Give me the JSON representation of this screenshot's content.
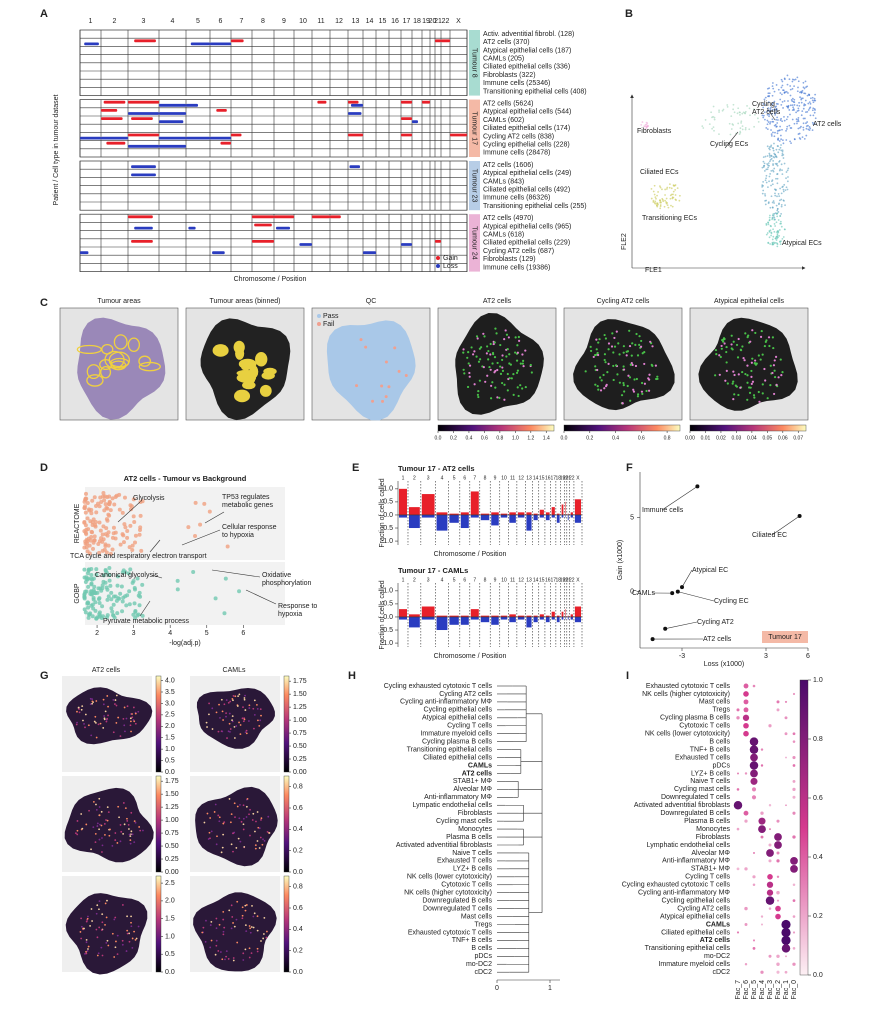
{
  "A": {
    "letter": "A",
    "chromosomes": [
      "1",
      "2",
      "3",
      "4",
      "5",
      "6",
      "7",
      "8",
      "9",
      "10",
      "11",
      "12",
      "13",
      "14",
      "15",
      "16",
      "17",
      "18",
      "19",
      "20",
      "21",
      "22",
      "X"
    ],
    "groups": [
      {
        "name": "Tumour 8",
        "color": "#a8dcd1",
        "rows": [
          "Activ. adventitial fibrobl. (128)",
          "AT2 cells (370)",
          "Atypical epithelial cells (187)",
          "CAMLs (205)",
          "Ciliated epithelial cells (336)",
          "Fibroblasts (322)",
          "Immune cells (25346)",
          "Transitioning epithelial cells (408)"
        ]
      },
      {
        "name": "Tumour 17",
        "color": "#f4b9a6",
        "rows": [
          "AT2 cells (5624)",
          "Atypical epithelial cells (544)",
          "CAMLs (602)",
          "Ciliated epithelial cells (174)",
          "Cycling AT2 cells (838)",
          "Cycling epithelial cells (228)",
          "Immune cells (28478)"
        ]
      },
      {
        "name": "Tumour 23",
        "color": "#b7cde6",
        "rows": [
          "AT2 cells (1606)",
          "Atypical epithelial cells (249)",
          "CAMLs (843)",
          "Ciliated epithelial cells (492)",
          "Immune cells (86326)",
          "Transitioning epithelial cells (255)"
        ]
      },
      {
        "name": "Tumour 24",
        "color": "#ebb3d6",
        "rows": [
          "AT2 cells (4970)",
          "Atypical epithelial cells (965)",
          "CAMLs (618)",
          "Ciliated epithelial cells (229)",
          "Cycling AT2 cells (687)",
          "Fibroblasts (129)",
          "Immune cells (19386)"
        ]
      }
    ],
    "y_label": "Patient / Cell type in tumour dataset",
    "x_label": "Chromosome / Position",
    "legend": [
      {
        "name": "Gain",
        "color": "#e8202a"
      },
      {
        "name": "Loss",
        "color": "#2a3cc0"
      }
    ]
  },
  "B": {
    "letter": "B",
    "labels": [
      {
        "lines": [
          "Cycling",
          "AT2 cells"
        ]
      },
      {
        "lines": [
          "AT2 cells"
        ]
      },
      {
        "lines": [
          "Fibroblasts"
        ]
      },
      {
        "lines": [
          "Cycling ECs"
        ]
      },
      {
        "lines": [
          "Ciliated ECs"
        ]
      },
      {
        "lines": [
          "Transitioning ECs"
        ]
      },
      {
        "lines": [
          "Atypical ECs"
        ]
      }
    ],
    "x_label": "FLE1",
    "y_label": "FLE2"
  },
  "C": {
    "letter": "C",
    "titles": [
      "Tumour areas",
      "Tumour areas (binned)",
      "QC",
      "AT2 cells",
      "Cycling AT2 cells",
      "Atypical epithelial cells"
    ],
    "legend": [
      "Pass",
      "Fail"
    ],
    "colorbars": [
      {
        "lim": [
          0,
          1.5
        ],
        "ticks": [
          {
            "value": 0,
            "label": "0.0"
          },
          0.2,
          0.4,
          0.6,
          0.8,
          {
            "value": 1,
            "label": "1.0"
          },
          1.2,
          1.4
        ]
      },
      {
        "lim": [
          0,
          0.9
        ],
        "ticks": [
          {
            "value": 0,
            "label": "0.0"
          },
          0.2,
          0.4,
          0.6,
          0.8
        ]
      },
      {
        "lim": [
          0,
          0.075
        ],
        "ticks": [
          {
            "value": 0,
            "label": "0.00"
          },
          0.01,
          0.02,
          0.03,
          0.04,
          0.05,
          0.06,
          0.07
        ]
      }
    ]
  },
  "D": {
    "letter": "D",
    "title": "AT2 cells - Tumour vs Background",
    "groups": [
      "REACTOME",
      "GOBP"
    ],
    "xlim": [
      1.67,
      7.14
    ],
    "xticks": [
      2,
      3,
      4,
      5,
      6
    ],
    "x_label": "-log(adj.p)",
    "annotations": [
      {
        "lines": [
          "Glycolysis"
        ]
      },
      {
        "lines": [
          "TP53 regulates",
          "metabolic genes"
        ]
      },
      {
        "lines": [
          "Cellular response",
          "to hypoxia"
        ]
      },
      {
        "lines": [
          "TCA cycle and respiratory electron transport"
        ]
      },
      {
        "lines": [
          "Canonical glycolysis"
        ]
      },
      {
        "lines": [
          "Oxidative",
          "phosphorylation"
        ]
      },
      {
        "lines": [
          "Response to",
          "hypoxia"
        ]
      },
      {
        "lines": [
          "Pyruvate metabolic process"
        ]
      }
    ]
  },
  "E": {
    "letter": "E",
    "y_label": "Fraction of cells called",
    "x_label": "Chromosome / Position",
    "ylim": [
      -1.15,
      1.3
    ],
    "yticks": [
      {
        "value": 1,
        "label": "1.0"
      },
      0.5,
      {
        "value": 0,
        "label": "0.0"
      },
      -0.5,
      {
        "value": -1,
        "label": "-1.0"
      }
    ],
    "charts": [
      {
        "title": "Tumour 17 - AT2 cells",
        "gain": [
          1.0,
          0.3,
          0.8,
          0.1,
          0.05,
          0.1,
          0.9,
          0.05,
          0.1,
          0.05,
          0.1,
          0.1,
          0.1,
          0.05,
          0.2,
          0.1,
          0.3,
          0.05,
          0.4,
          0.5,
          0.05,
          0.1,
          0.6
        ],
        "loss": [
          -0.1,
          -0.5,
          -0.1,
          -0.6,
          -0.3,
          -0.5,
          -0.1,
          -0.2,
          -0.4,
          -0.1,
          -0.3,
          -0.1,
          -0.6,
          -0.2,
          -0.1,
          -0.2,
          -0.1,
          -0.3,
          -0.1,
          -0.1,
          -0.2,
          -0.1,
          -0.3
        ]
      },
      {
        "title": "Tumour 17 - CAMLs",
        "gain": [
          0.3,
          0.1,
          0.4,
          0.05,
          0.05,
          0.05,
          0.3,
          0.05,
          0.05,
          0.05,
          0.1,
          0.05,
          0.05,
          0.05,
          0.1,
          0.05,
          0.2,
          0.05,
          0.2,
          0.3,
          0.05,
          0.1,
          0.4
        ],
        "loss": [
          -0.1,
          -0.4,
          -0.1,
          -0.5,
          -0.3,
          -0.3,
          -0.1,
          -0.2,
          -0.3,
          -0.1,
          -0.2,
          -0.1,
          -0.4,
          -0.2,
          -0.1,
          -0.2,
          -0.1,
          -0.2,
          -0.1,
          -0.1,
          -0.1,
          -0.1,
          -0.2
        ]
      }
    ]
  },
  "F": {
    "letter": "F",
    "xlim": [
      -6,
      6
    ],
    "ylim": [
      -3.8,
      8.2
    ],
    "xticks": [
      -3,
      3,
      6
    ],
    "yticks": [
      0,
      5
    ],
    "x_label": "Loss (x1000)",
    "y_label": "Gain (x1000)",
    "tag": "Tumour 17",
    "points": [
      {
        "label": "Immune cells",
        "x": -1.9,
        "y": 7.1
      },
      {
        "label": "Ciliated EC",
        "x": 5.4,
        "y": 5.1
      },
      {
        "label": "Atypical EC",
        "x": -3.0,
        "y": 0.3
      },
      {
        "label": "Cycling EC",
        "x": -3.3,
        "y": 0.0
      },
      {
        "label": "Cycling AT2",
        "x": -4.2,
        "y": -2.5
      },
      {
        "label": "AT2 cells",
        "x": -5.1,
        "y": -3.2
      },
      {
        "label": "CAMLs",
        "x": -3.7,
        "y": -0.1
      }
    ]
  },
  "G": {
    "letter": "G",
    "titles": [
      "AT2 cells",
      "CAMLs"
    ],
    "colorbars": [
      [
        {
          "lim": [
            0,
            4.2
          ],
          "ticks": [
            {
              "value": 0,
              "label": "0.0"
            },
            0.5,
            {
              "value": 1,
              "label": "1.0"
            },
            1.5,
            {
              "value": 2,
              "label": "2.0"
            },
            2.5,
            {
              "value": 3,
              "label": "3.0"
            },
            3.5,
            {
              "value": 4,
              "label": "4.0"
            }
          ]
        },
        {
          "lim": [
            0,
            1.85
          ],
          "ticks": [
            {
              "value": 0,
              "label": "0.00"
            },
            0.25,
            {
              "value": 0.5,
              "label": "0.50"
            },
            0.75,
            {
              "value": 1,
              "label": "1.00"
            },
            1.25,
            {
              "value": 1.5,
              "label": "1.50"
            },
            1.75
          ]
        }
      ],
      [
        {
          "lim": [
            0,
            1.85
          ],
          "ticks": [
            {
              "value": 0,
              "label": "0.00"
            },
            0.25,
            {
              "value": 0.5,
              "label": "0.50"
            },
            0.75,
            {
              "value": 1,
              "label": "1.00"
            },
            1.25,
            {
              "value": 1.5,
              "label": "1.50"
            },
            1.75
          ]
        },
        {
          "lim": [
            0,
            0.9
          ],
          "ticks": [
            {
              "value": 0,
              "label": "0.0"
            },
            0.2,
            0.4,
            0.6,
            0.8
          ]
        }
      ],
      [
        {
          "lim": [
            0,
            2.7
          ],
          "ticks": [
            {
              "value": 0,
              "label": "0.0"
            },
            0.5,
            {
              "value": 1,
              "label": "1.0"
            },
            1.5,
            {
              "value": 2,
              "label": "2.0"
            },
            2.5
          ]
        },
        {
          "lim": [
            0,
            0.9
          ],
          "ticks": [
            {
              "value": 0,
              "label": "0.0"
            },
            0.2,
            0.4,
            0.6,
            0.8
          ]
        }
      ]
    ]
  },
  "H": {
    "letter": "H",
    "xlim": [
      0,
      1.2
    ],
    "xticks": [
      0,
      1
    ],
    "bold": [
      10,
      11
    ],
    "labels": [
      "Cycling exhausted cytotoxic T cells",
      "Cycling AT2 cells",
      "Cycling anti-inflammatory MΦ",
      "Cycling epithelial cells",
      "Atypical epithelial cells",
      "Cycling T cells",
      "Immature myeloid cells",
      "Cycling plasma B cells",
      "Transitioning epithelial cells",
      "Ciliated epithelial cells",
      "CAMLs",
      "AT2 cells",
      "STAB1+ MΦ",
      "Alveolar MΦ",
      "Anti-inflammatory MΦ",
      "Lympatic endothelial cells",
      "Fibroblasts",
      "Cycling mast cells",
      "Monocytes",
      "Plasma B cells",
      "Activated adventitial fibroblasts",
      "Naive T cells",
      "Exhausted T cells",
      "LYZ+ B cells",
      "NK cells (lower cytotoxicity)",
      "Cytotoxic T cells",
      "NK cells (higher cytotoxicity)",
      "Downregulated B cells",
      "Downregulated T cells",
      "Mast cells",
      "Tregs",
      "Exhausted cytotoxic T cells",
      "TNF+ B cells",
      "B cells",
      "pDCs",
      "mo-DC2",
      "cDC2"
    ]
  },
  "I": {
    "letter": "I",
    "bold": [
      30,
      32
    ],
    "labels": [
      "Exhausted cytotoxic T cells",
      "NK cells (higher cytotoxicity)",
      "Mast cells",
      "Tregs",
      "Cycling plasma B cells",
      "Cytotoxic T cells",
      "NK cells (lower cytotoxicity)",
      "B cells",
      "TNF+ B cells",
      "Exhausted T cells",
      "pDCs",
      "LYZ+ B cells",
      "Naive T cells",
      "Cycling mast cells",
      "Downregulated T cells",
      "Activated adventitial fibroblasts",
      "Downregulated B cells",
      "Plasma B cells",
      "Monocytes",
      "Fibroblasts",
      "Lymphatic endothelial cells",
      "Alveolar MΦ",
      "Anti-inflammatory MΦ",
      "STAB1+ MΦ",
      "Cycling T cells",
      "Cycling exhausted cytotoxic T cells",
      "Cycling anti-inflammatory MΦ",
      "Cycling epithelial cells",
      "Cycling AT2 cells",
      "Atypical epithelial cells",
      "CAMLs",
      "Ciliated epithelial cells",
      "AT2 cells",
      "Transitioning epithelial cells",
      "mo-DC2",
      "Immature myeloid cells",
      "cDC2"
    ],
    "factors": [
      "Fac_7",
      "Fac_6",
      "Fac_5",
      "Fac_4",
      "Fac_3",
      "Fac_2",
      "Fac_1",
      "Fac_0"
    ],
    "colorbar": {
      "lim": [
        0,
        1
      ],
      "ticks": [
        {
          "value": 0,
          "label": "0.0"
        },
        0.2,
        0.4,
        0.6,
        0.8,
        {
          "value": 1,
          "label": "1.0"
        }
      ]
    }
  }
}
